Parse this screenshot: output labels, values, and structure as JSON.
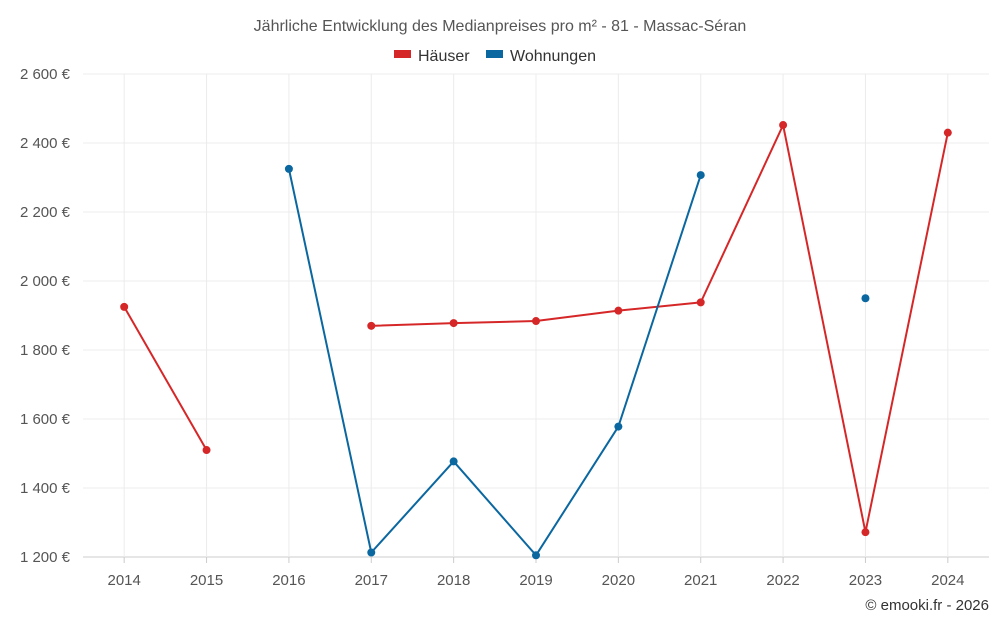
{
  "chart_data": {
    "type": "line",
    "title": "Jährliche Entwicklung des Medianpreises pro m² - 81 - Massac-Séran",
    "categories": [
      "2014",
      "2015",
      "2016",
      "2017",
      "2018",
      "2019",
      "2020",
      "2021",
      "2022",
      "2023",
      "2024"
    ],
    "series": [
      {
        "name": "Häuser",
        "color": "#d62728",
        "values": [
          1925,
          1510,
          null,
          1870,
          1878,
          1884,
          1914,
          1938,
          2452,
          1272,
          2430
        ]
      },
      {
        "name": "Wohnungen",
        "color": "#0a67a0",
        "values": [
          null,
          null,
          2325,
          1213,
          1477,
          1205,
          1578,
          2307,
          null,
          1950,
          null
        ]
      }
    ],
    "ylim": [
      1200,
      2600
    ],
    "yticks": [
      1200,
      1400,
      1600,
      1800,
      2000,
      2200,
      2400,
      2600
    ],
    "ytick_labels": [
      "1 200 €",
      "1 400 €",
      "1 600 €",
      "1 800 €",
      "2 000 €",
      "2 200 €",
      "2 400 €",
      "2 600 €"
    ],
    "xlabel": "",
    "ylabel": "",
    "legend_position": "top-center",
    "grid": true
  },
  "credit": "© emooki.fr - 2026"
}
